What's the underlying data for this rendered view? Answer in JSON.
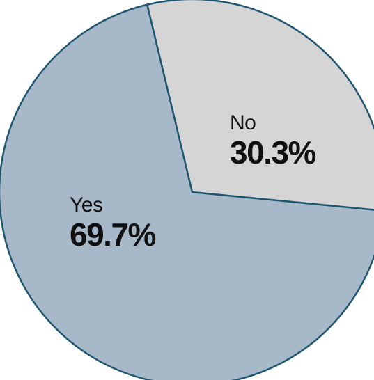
{
  "chart_data": {
    "type": "pie",
    "slices": [
      {
        "label": "Yes",
        "value": 69.7,
        "value_text": "69.7%",
        "color": "#a7b8c9"
      },
      {
        "label": "No",
        "value": 30.3,
        "value_text": "30.3%",
        "color": "#d5d5d5"
      }
    ],
    "slice_border_color": "#1f5570",
    "outer_border_color": "#111111"
  }
}
